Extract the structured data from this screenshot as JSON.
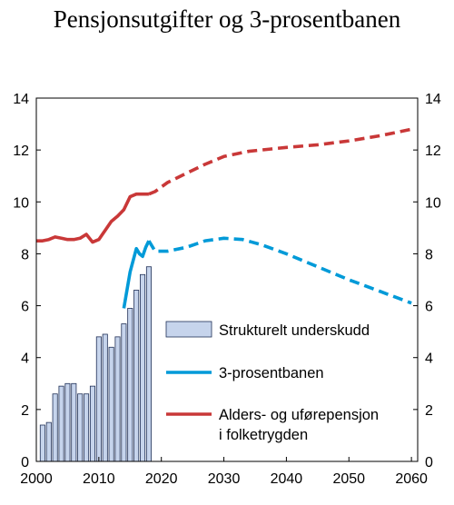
{
  "chart_data": {
    "type": "bar+line",
    "title": "Pensjonsutgifter og 3-prosentbanen",
    "xlabel": "",
    "ylabel": "",
    "xlim": [
      2000,
      2061
    ],
    "ylim": [
      0,
      14
    ],
    "y_ticks": [
      0,
      2,
      4,
      6,
      8,
      10,
      12,
      14
    ],
    "x_ticks": [
      2000,
      2010,
      2020,
      2030,
      2040,
      2050,
      2060
    ],
    "grid": false,
    "legend_position": "center-right",
    "series": [
      {
        "name": "Strukturelt underskudd",
        "type": "bar",
        "color": "#c6d4ec",
        "x": [
          2001,
          2002,
          2003,
          2004,
          2005,
          2006,
          2007,
          2008,
          2009,
          2010,
          2011,
          2012,
          2013,
          2014,
          2015,
          2016,
          2017,
          2018
        ],
        "values": [
          1.4,
          1.5,
          2.6,
          2.9,
          3.0,
          3.0,
          2.6,
          2.6,
          2.9,
          4.8,
          4.9,
          4.4,
          4.8,
          5.3,
          5.9,
          6.6,
          7.2,
          7.5
        ]
      },
      {
        "name": "3-prosentbanen",
        "type": "line",
        "color": "#009ad8",
        "solid": {
          "x": [
            2014,
            2015,
            2016,
            2016.5,
            2017,
            2017.5,
            2018
          ],
          "y": [
            5.9,
            7.3,
            8.2,
            8.0,
            7.9,
            8.25,
            8.5
          ]
        },
        "dashed": {
          "x": [
            2018,
            2019,
            2021,
            2024,
            2027,
            2030,
            2033,
            2036,
            2040,
            2045,
            2050,
            2055,
            2060
          ],
          "y": [
            8.5,
            8.1,
            8.1,
            8.25,
            8.5,
            8.6,
            8.55,
            8.35,
            8.0,
            7.5,
            7.0,
            6.55,
            6.1
          ]
        }
      },
      {
        "name": "Alders- og uførepensjon i folketrygden",
        "name_lines": [
          "Alders- og uførepensjon",
          "i  folketrygden"
        ],
        "type": "line",
        "color": "#c93838",
        "solid": {
          "x": [
            2000,
            2001,
            2002,
            2003,
            2004,
            2005,
            2006,
            2007,
            2008,
            2009,
            2010,
            2011,
            2012,
            2013,
            2014,
            2015,
            2016,
            2017,
            2018
          ],
          "y": [
            8.5,
            8.5,
            8.55,
            8.65,
            8.6,
            8.55,
            8.55,
            8.6,
            8.75,
            8.45,
            8.55,
            8.9,
            9.25,
            9.45,
            9.7,
            10.2,
            10.3,
            10.3,
            10.3
          ]
        },
        "dashed": {
          "x": [
            2018,
            2019,
            2021,
            2024,
            2027,
            2030,
            2034,
            2040,
            2045,
            2050,
            2055,
            2060
          ],
          "y": [
            10.3,
            10.4,
            10.75,
            11.1,
            11.45,
            11.75,
            11.95,
            12.1,
            12.2,
            12.35,
            12.55,
            12.8
          ]
        }
      }
    ]
  }
}
